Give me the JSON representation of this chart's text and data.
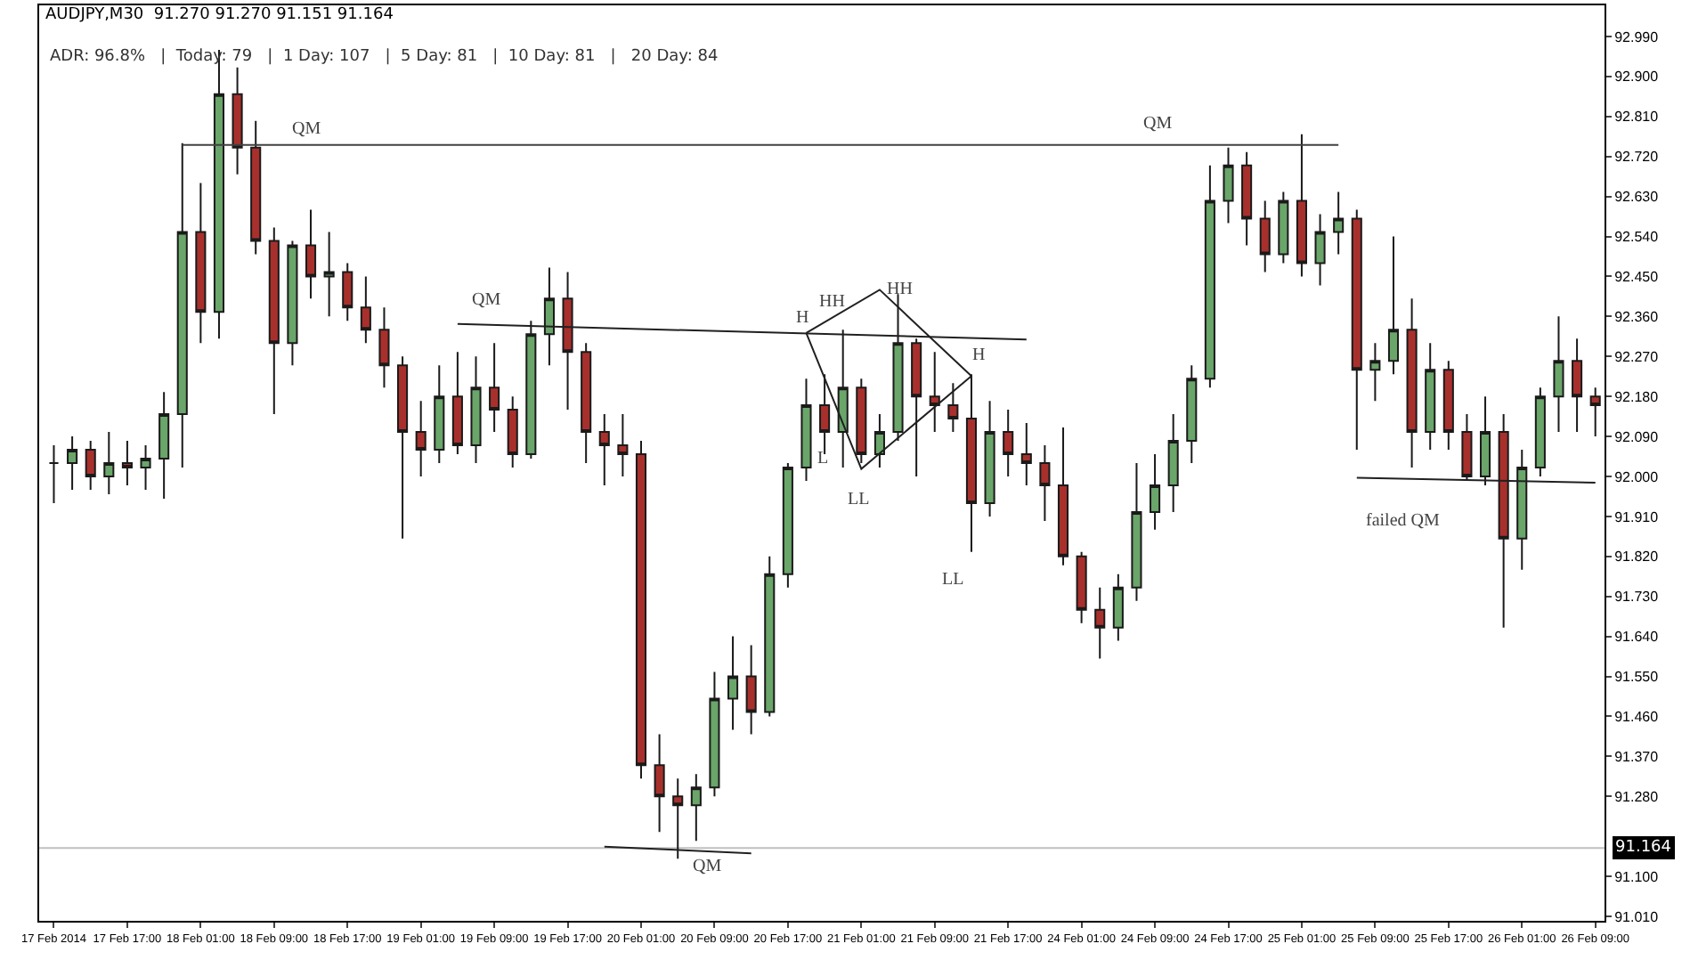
{
  "chart_data": {
    "type": "candlestick",
    "title": "AUDJPY,M30  91.270 91.270 91.151 91.164",
    "subtitle": "ADR: 96.8%   |  Today: 79   |  1 Day: 107   |  5 Day: 81   |  10 Day: 81   |   20 Day: 84",
    "categories": [
      "17 Feb 2014",
      null,
      null,
      null,
      "17 Feb 17:00",
      null,
      null,
      null,
      "18 Feb 01:00",
      null,
      null,
      null,
      "18 Feb 09:00",
      null,
      null,
      null,
      "18 Feb 17:00",
      null,
      null,
      null,
      "19 Feb 01:00",
      null,
      null,
      null,
      "19 Feb 09:00",
      null,
      null,
      null,
      "19 Feb 17:00",
      null,
      null,
      null,
      "20 Feb 01:00",
      null,
      null,
      null,
      "20 Feb 09:00",
      null,
      null,
      null,
      "20 Feb 17:00",
      null,
      null,
      null,
      "21 Feb 01:00",
      null,
      null,
      null,
      "21 Feb 09:00",
      null,
      null,
      null,
      "21 Feb 17:00",
      null,
      null,
      null,
      "24 Feb 01:00",
      null,
      null,
      null,
      "24 Feb 09:00",
      null,
      null,
      null,
      "24 Feb 17:00",
      null,
      null,
      null,
      "25 Feb 01:00",
      null,
      null,
      null,
      "25 Feb 09:00",
      null,
      null,
      null,
      "25 Feb 17:00",
      null,
      null,
      null,
      "26 Feb 01:00",
      null,
      null,
      null,
      "26 Feb 09:00"
    ],
    "ohlc": [
      [
        92.03,
        92.07,
        91.94,
        92.03
      ],
      [
        92.03,
        92.09,
        91.97,
        92.06
      ],
      [
        92.06,
        92.08,
        91.97,
        92.0
      ],
      [
        92.0,
        92.1,
        91.96,
        92.03
      ],
      [
        92.03,
        92.08,
        91.98,
        92.02
      ],
      [
        92.02,
        92.07,
        91.97,
        92.04
      ],
      [
        92.04,
        92.19,
        91.95,
        92.14
      ],
      [
        92.14,
        92.75,
        92.02,
        92.55
      ],
      [
        92.55,
        92.66,
        92.3,
        92.37
      ],
      [
        92.37,
        92.96,
        92.31,
        92.86
      ],
      [
        92.86,
        92.92,
        92.68,
        92.74
      ],
      [
        92.74,
        92.8,
        92.5,
        92.53
      ],
      [
        92.53,
        92.56,
        92.14,
        92.3
      ],
      [
        92.3,
        92.53,
        92.25,
        92.52
      ],
      [
        92.52,
        92.6,
        92.4,
        92.45
      ],
      [
        92.45,
        92.55,
        92.36,
        92.46
      ],
      [
        92.46,
        92.48,
        92.35,
        92.38
      ],
      [
        92.38,
        92.45,
        92.3,
        92.33
      ],
      [
        92.33,
        92.38,
        92.2,
        92.25
      ],
      [
        92.25,
        92.27,
        91.86,
        92.1
      ],
      [
        92.1,
        92.17,
        92.0,
        92.06
      ],
      [
        92.06,
        92.25,
        92.03,
        92.18
      ],
      [
        92.18,
        92.28,
        92.05,
        92.07
      ],
      [
        92.07,
        92.27,
        92.03,
        92.2
      ],
      [
        92.2,
        92.3,
        92.1,
        92.15
      ],
      [
        92.15,
        92.18,
        92.02,
        92.05
      ],
      [
        92.05,
        92.35,
        92.04,
        92.32
      ],
      [
        92.32,
        92.47,
        92.25,
        92.4
      ],
      [
        92.4,
        92.46,
        92.15,
        92.28
      ],
      [
        92.28,
        92.3,
        92.03,
        92.1
      ],
      [
        92.1,
        92.14,
        91.98,
        92.07
      ],
      [
        92.07,
        92.14,
        92.0,
        92.05
      ],
      [
        92.05,
        92.08,
        91.32,
        91.35
      ],
      [
        91.35,
        91.42,
        91.2,
        91.28
      ],
      [
        91.28,
        91.32,
        91.14,
        91.26
      ],
      [
        91.26,
        91.33,
        91.18,
        91.3
      ],
      [
        91.3,
        91.56,
        91.28,
        91.5
      ],
      [
        91.5,
        91.64,
        91.43,
        91.55
      ],
      [
        91.55,
        91.62,
        91.42,
        91.47
      ],
      [
        91.47,
        91.82,
        91.46,
        91.78
      ],
      [
        91.78,
        92.03,
        91.75,
        92.02
      ],
      [
        92.02,
        92.22,
        91.99,
        92.16
      ],
      [
        92.16,
        92.23,
        92.05,
        92.1
      ],
      [
        92.1,
        92.33,
        92.02,
        92.2
      ],
      [
        92.2,
        92.22,
        92.03,
        92.05
      ],
      [
        92.05,
        92.14,
        92.02,
        92.1
      ],
      [
        92.1,
        92.41,
        92.08,
        92.3
      ],
      [
        92.3,
        92.31,
        92.0,
        92.18
      ],
      [
        92.18,
        92.28,
        92.1,
        92.16
      ],
      [
        92.16,
        92.21,
        92.1,
        92.13
      ],
      [
        92.13,
        92.23,
        91.83,
        91.94
      ],
      [
        91.94,
        92.17,
        91.91,
        92.1
      ],
      [
        92.1,
        92.15,
        92.0,
        92.05
      ],
      [
        92.05,
        92.12,
        91.98,
        92.03
      ],
      [
        92.03,
        92.07,
        91.9,
        91.98
      ],
      [
        91.98,
        92.11,
        91.8,
        91.82
      ],
      [
        91.82,
        91.83,
        91.67,
        91.7
      ],
      [
        91.7,
        91.75,
        91.59,
        91.66
      ],
      [
        91.66,
        91.78,
        91.63,
        91.75
      ],
      [
        91.75,
        92.03,
        91.72,
        91.92
      ],
      [
        91.92,
        92.05,
        91.88,
        91.98
      ],
      [
        91.98,
        92.14,
        91.92,
        92.08
      ],
      [
        92.08,
        92.25,
        92.03,
        92.22
      ],
      [
        92.22,
        92.7,
        92.2,
        92.62
      ],
      [
        92.62,
        92.74,
        92.57,
        92.7
      ],
      [
        92.7,
        92.73,
        92.52,
        92.58
      ],
      [
        92.58,
        92.62,
        92.46,
        92.5
      ],
      [
        92.5,
        92.64,
        92.48,
        92.62
      ],
      [
        92.62,
        92.77,
        92.45,
        92.48
      ],
      [
        92.48,
        92.59,
        92.43,
        92.55
      ],
      [
        92.55,
        92.64,
        92.5,
        92.58
      ],
      [
        92.58,
        92.6,
        92.06,
        92.24
      ],
      [
        92.24,
        92.3,
        92.17,
        92.26
      ],
      [
        92.26,
        92.54,
        92.23,
        92.33
      ],
      [
        92.33,
        92.4,
        92.02,
        92.1
      ],
      [
        92.1,
        92.3,
        92.06,
        92.24
      ],
      [
        92.24,
        92.26,
        92.06,
        92.1
      ],
      [
        92.1,
        92.14,
        91.99,
        92.0
      ],
      [
        92.0,
        92.18,
        91.98,
        92.1
      ],
      [
        92.1,
        92.14,
        91.66,
        91.86
      ],
      [
        91.86,
        92.06,
        91.79,
        92.02
      ],
      [
        92.02,
        92.2,
        92.0,
        92.18
      ],
      [
        92.18,
        92.36,
        92.1,
        92.26
      ],
      [
        92.26,
        92.31,
        92.1,
        92.18
      ],
      [
        92.18,
        92.2,
        92.09,
        92.16
      ]
    ],
    "series": [
      {
        "type": "line",
        "color": "#404040",
        "values": [
          null,
          null,
          null,
          null,
          null,
          null,
          null,
          92.746,
          null,
          null,
          null,
          null,
          null,
          null,
          null,
          null,
          null,
          null,
          null,
          null,
          null,
          null,
          null,
          null,
          null,
          null,
          null,
          null,
          null,
          null,
          null,
          null,
          null,
          null,
          null,
          null,
          null,
          null,
          null,
          null,
          null,
          null,
          null,
          null,
          null,
          null,
          null,
          null,
          null,
          null,
          null,
          null,
          null,
          null,
          null,
          null,
          null,
          null,
          null,
          null,
          null,
          null,
          null,
          null,
          null,
          null,
          null,
          null,
          null,
          null,
          92.746,
          null,
          null,
          null,
          null,
          null,
          null,
          null,
          null,
          null,
          null,
          null,
          null,
          null,
          null
        ]
      },
      {
        "type": "line",
        "color": "#202020",
        "values": [
          null,
          null,
          null,
          null,
          null,
          null,
          null,
          null,
          null,
          null,
          null,
          null,
          null,
          null,
          null,
          null,
          null,
          null,
          null,
          null,
          null,
          null,
          92.343,
          null,
          null,
          null,
          null,
          null,
          null,
          null,
          null,
          null,
          null,
          null,
          null,
          null,
          null,
          null,
          null,
          null,
          null,
          null,
          null,
          null,
          null,
          null,
          null,
          null,
          null,
          null,
          null,
          null,
          null,
          92.308,
          null,
          null,
          null,
          null,
          null,
          null,
          null,
          null,
          null,
          null,
          null,
          null,
          null,
          null,
          null,
          null,
          null,
          null,
          null,
          null,
          null,
          null,
          null,
          null,
          null,
          null,
          null,
          null,
          null,
          null,
          null
        ]
      },
      {
        "type": "line",
        "color": "#202020",
        "values": [
          null,
          null,
          null,
          null,
          null,
          null,
          null,
          null,
          null,
          null,
          null,
          null,
          null,
          null,
          null,
          null,
          null,
          null,
          null,
          null,
          null,
          null,
          null,
          null,
          null,
          null,
          null,
          null,
          null,
          null,
          91.167,
          null,
          null,
          null,
          null,
          null,
          null,
          null,
          91.152,
          null,
          null,
          null,
          null,
          null,
          null,
          null,
          null,
          null,
          null,
          null,
          null,
          null,
          null,
          null,
          null,
          null,
          null,
          null,
          null,
          null,
          null,
          null,
          null,
          null,
          null,
          null,
          null,
          null,
          null,
          null,
          null,
          null,
          null,
          null,
          null,
          null,
          null,
          null,
          null,
          null,
          null,
          null,
          null,
          null,
          null
        ]
      },
      {
        "type": "line",
        "color": "#202020",
        "values": [
          null,
          null,
          null,
          null,
          null,
          null,
          null,
          null,
          null,
          null,
          null,
          null,
          null,
          null,
          null,
          null,
          null,
          null,
          null,
          null,
          null,
          null,
          null,
          null,
          null,
          null,
          null,
          null,
          null,
          null,
          null,
          null,
          null,
          null,
          null,
          null,
          null,
          null,
          null,
          null,
          null,
          null,
          null,
          null,
          null,
          null,
          null,
          null,
          null,
          null,
          null,
          null,
          null,
          null,
          null,
          null,
          null,
          null,
          null,
          null,
          null,
          null,
          null,
          null,
          null,
          null,
          null,
          null,
          null,
          null,
          null,
          91.997,
          null,
          null,
          null,
          null,
          null,
          null,
          null,
          null,
          null,
          null,
          null,
          null,
          91.986
        ]
      },
      {
        "type": "line",
        "color": "#202020",
        "values": [
          null,
          null,
          null,
          null,
          null,
          null,
          null,
          null,
          null,
          null,
          null,
          null,
          null,
          null,
          null,
          null,
          null,
          null,
          null,
          null,
          null,
          null,
          null,
          null,
          null,
          null,
          null,
          null,
          null,
          null,
          null,
          null,
          null,
          null,
          null,
          null,
          null,
          null,
          null,
          null,
          null,
          92.323,
          null,
          null,
          null,
          92.42,
          null,
          null,
          null,
          null,
          92.226,
          null,
          null,
          null,
          null,
          null,
          null,
          null,
          null,
          null,
          null,
          null,
          null,
          null,
          null,
          null,
          null,
          null,
          null,
          null,
          null,
          null,
          null,
          null,
          null,
          null,
          null,
          null,
          null,
          null,
          null,
          null,
          null,
          null,
          null
        ]
      },
      {
        "type": "line",
        "color": "#202020",
        "values": [
          null,
          null,
          null,
          null,
          null,
          null,
          null,
          null,
          null,
          null,
          null,
          null,
          null,
          null,
          null,
          null,
          null,
          null,
          null,
          null,
          null,
          null,
          null,
          null,
          null,
          null,
          null,
          null,
          null,
          null,
          null,
          null,
          null,
          null,
          null,
          null,
          null,
          null,
          null,
          null,
          null,
          92.323,
          null,
          null,
          92.017,
          null,
          null,
          null,
          null,
          null,
          92.226,
          null,
          null,
          null,
          null,
          null,
          null,
          null,
          null,
          null,
          null,
          null,
          null,
          null,
          null,
          null,
          null,
          null,
          null,
          null,
          null,
          null,
          null,
          null,
          null,
          null,
          null,
          null,
          null,
          null,
          null,
          null,
          null,
          null,
          null
        ]
      }
    ],
    "ylim": [
      91.0,
      93.06
    ],
    "yticks": [
      {
        "value": 91.01,
        "label": "91.010"
      },
      {
        "value": 91.1,
        "label": "91.100"
      },
      {
        "value": 91.28,
        "label": "91.280"
      },
      {
        "value": 91.37,
        "label": "91.370"
      },
      {
        "value": 91.46,
        "label": "91.460"
      },
      {
        "value": 91.55,
        "label": "91.550"
      },
      {
        "value": 91.64,
        "label": "91.640"
      },
      {
        "value": 91.73,
        "label": "91.730"
      },
      {
        "value": 91.82,
        "label": "91.820"
      },
      {
        "value": 91.91,
        "label": "91.910"
      },
      {
        "value": 92.0,
        "label": "92.000"
      },
      {
        "value": 92.09,
        "label": "92.090"
      },
      {
        "value": 92.18,
        "label": "92.180"
      },
      {
        "value": 92.27,
        "label": "92.270"
      },
      {
        "value": 92.36,
        "label": "92.360"
      },
      {
        "value": 92.45,
        "label": "92.450"
      },
      {
        "value": 92.54,
        "label": "92.540"
      },
      {
        "value": 92.63,
        "label": "92.630"
      },
      {
        "value": 92.72,
        "label": "92.720"
      },
      {
        "value": 92.81,
        "label": "92.810"
      },
      {
        "value": 92.9,
        "label": "92.900"
      },
      {
        "value": 92.99,
        "label": "92.990"
      }
    ],
    "ref_lines": [
      {
        "axis": "y",
        "value": 91.164,
        "label": "91.164",
        "color": "#c0c0c0"
      }
    ],
    "annotations": [
      "QM",
      "QM",
      "QM",
      "H",
      "HH",
      "HH",
      "L",
      "LL",
      "H",
      "LL",
      "QM",
      "failed QM"
    ]
  }
}
